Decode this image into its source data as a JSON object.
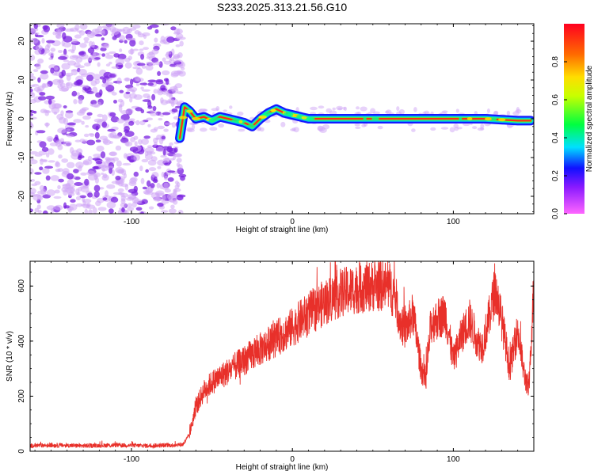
{
  "title": "S233.2025.313.21.56.G10",
  "colors": {
    "snr_line": "#e8302a",
    "ridge_outer": "#1418ff",
    "ridge_mid": "#00c8e6",
    "ridge_core": "#ff2a1a",
    "noise_dark": "#7a20e0",
    "noise_light": "#cfa6f5"
  },
  "chart_data": [
    {
      "id": "spectrogram",
      "type": "heatmap",
      "xlabel": "Height of straight line (km)",
      "ylabel": "Frequency (Hz)",
      "xlim": [
        -163,
        150
      ],
      "ylim": [
        -24.5,
        24.5
      ],
      "xticks": [
        -100,
        0,
        100
      ],
      "yticks": [
        -20,
        -10,
        0,
        10,
        20
      ],
      "grid": false,
      "noise_region_x": [
        -163,
        -70
      ],
      "ridge": {
        "x": [
          -70,
          -67,
          -64,
          -60,
          -55,
          -50,
          -45,
          -40,
          -35,
          -30,
          -25,
          -20,
          -15,
          -10,
          -5,
          0,
          5,
          10,
          20,
          40,
          60,
          80,
          100,
          120,
          140,
          148
        ],
        "y": [
          -5,
          3,
          2,
          0,
          0.5,
          -0.5,
          0.5,
          0,
          -0.5,
          -1,
          -2,
          0,
          1.5,
          2.5,
          1.5,
          1,
          0.5,
          0,
          0,
          0,
          0,
          0,
          0,
          0,
          -0.5,
          -0.5
        ]
      },
      "colorbar": {
        "label": "Normalized spectral amplitude",
        "range": [
          0,
          1
        ],
        "ticks": [
          0.0,
          0.2,
          0.4,
          0.6,
          0.8
        ]
      }
    },
    {
      "id": "snr",
      "type": "line",
      "xlabel": "Height of straight line (km)",
      "ylabel": "SNR (10 * v/v)",
      "xlim": [
        -163,
        150
      ],
      "ylim": [
        0,
        690
      ],
      "xticks": [
        -100,
        0,
        100
      ],
      "yticks": [
        0,
        200,
        400,
        600
      ],
      "grid": false,
      "series": [
        {
          "values_x": [
            -163,
            -150,
            -130,
            -110,
            -90,
            -75,
            -68,
            -64,
            -60,
            -55,
            -50,
            -40,
            -30,
            -20,
            -10,
            0,
            10,
            20,
            30,
            40,
            50,
            60,
            64,
            67,
            70,
            75,
            80,
            83,
            86,
            90,
            95,
            100,
            105,
            110,
            115,
            118,
            122,
            126,
            130,
            135,
            140,
            144,
            147,
            148,
            150
          ],
          "values_y": [
            20,
            22,
            20,
            22,
            20,
            22,
            25,
            60,
            160,
            220,
            250,
            290,
            330,
            370,
            410,
            450,
            500,
            540,
            575,
            590,
            600,
            600,
            560,
            470,
            440,
            500,
            300,
            260,
            460,
            480,
            500,
            330,
            420,
            480,
            400,
            380,
            480,
            590,
            480,
            300,
            440,
            280,
            220,
            360,
            600
          ]
        }
      ]
    }
  ]
}
